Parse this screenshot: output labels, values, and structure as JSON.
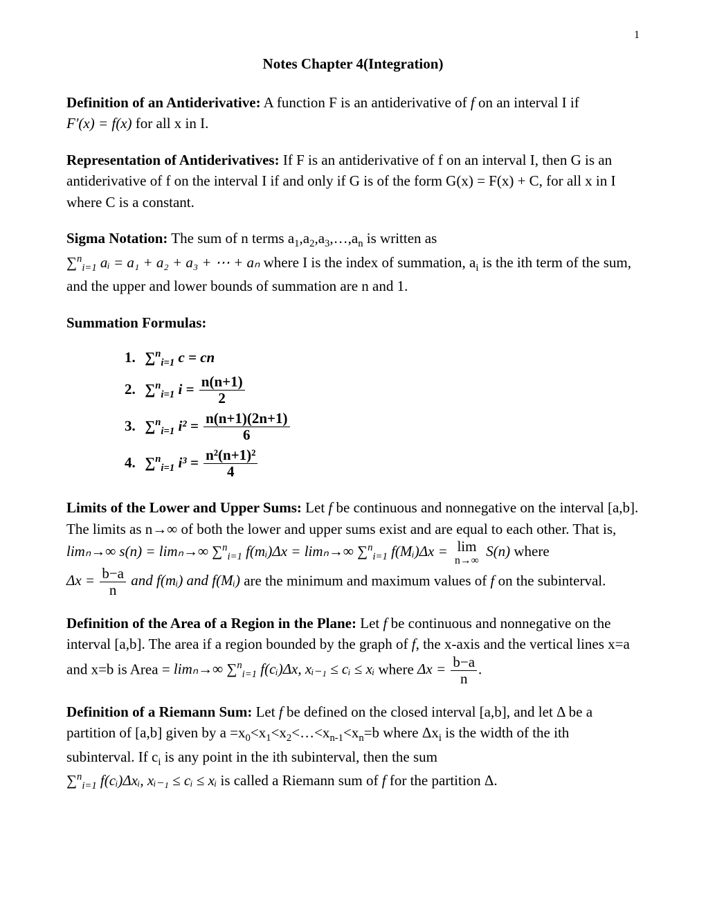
{
  "page": {
    "number": "1"
  },
  "title": "Notes Chapter 4(Integration)",
  "sections": {
    "antideriv": {
      "heading": "Definition of an Antiderivative:",
      "text1": " A function F is an antiderivative of ",
      "text2": " on an interval I if ",
      "formula": "F′(x) = f(x)",
      "text3": " for all x in I."
    },
    "rep": {
      "heading": "Representation of Antiderivatives:",
      "text": " If F is an antiderivative of f on an interval I, then G is an antiderivative of f on the interval I if and only if G is of the form G(x) = F(x) + C, for all x in I where C is a constant."
    },
    "sigma": {
      "heading": "Sigma Notation:",
      "text1": " The sum of n terms a",
      "sub1": "1",
      "text2": ",a",
      "sub2": "2",
      "text3": ",a",
      "sub3": "3",
      "text4": ",…,a",
      "subn": "n",
      "text5": " is written as",
      "formula_left": "∑",
      "formula_sup": "n",
      "formula_sub": "i=1",
      "formula_body": " aᵢ = a₁ + a₂ + a₃ + ⋯ + aₙ",
      "text6": " where I is the index of summation, a",
      "subi": "i",
      "text7": " is the ith term of the sum, and the upper and lower bounds of summation are n and 1."
    },
    "sumformulas": {
      "heading": "Summation Formulas:",
      "items": [
        {
          "n": "1.",
          "lhs": "∑",
          "sup": "n",
          "sub": "i=1",
          "body": " c = cn"
        },
        {
          "n": "2.",
          "lhs": "∑",
          "sup": "n",
          "sub": "i=1",
          "body_prefix": " i = ",
          "frac_num": "n(n+1)",
          "frac_den": "2"
        },
        {
          "n": "3.",
          "lhs": "∑",
          "sup": "n",
          "sub": "i=1",
          "body_prefix": " i² = ",
          "frac_num": "n(n+1)(2n+1)",
          "frac_den": "6"
        },
        {
          "n": "4.",
          "lhs": "∑",
          "sup": "n",
          "sub": "i=1",
          "body_prefix": " i³ = ",
          "frac_num": "n²(n+1)²",
          "frac_den": "4"
        }
      ]
    },
    "limits": {
      "heading": "Limits of the Lower and Upper Sums:",
      "text1": " Let ",
      "text2": " be continuous and nonnegative on the interval [a,b]. The limits as n→∞ of both the lower and upper sums exist and are equal to each other. That is,",
      "line2_a": "limₙ→∞ s(n) = limₙ→∞ ∑",
      "line2_sup": "n",
      "line2_sub": "i=1",
      "line2_b": " f(mᵢ)Δx = limₙ→∞ ∑",
      "line2_c": " f(Mᵢ)Δx = ",
      "line2_lim": "lim",
      "line2_limsub": "n→∞",
      "line2_d": " S(n)",
      "line2_tail": " where",
      "line3_a": "Δx = ",
      "line3_num": "b−a",
      "line3_den": "n",
      "line3_b": " and f(mᵢ) and f(Mᵢ)",
      "line3_c": " are the minimum and maximum values of ",
      "line3_d": " on the subinterval."
    },
    "area": {
      "heading": "Definition of the Area of a Region in the Plane:",
      "text1": " Let ",
      "text2": " be continuous and nonnegative on the interval [a,b]. The area if a region bounded by the graph of ",
      "text3": ", the x-axis and the vertical lines x=a and x=b is Area = ",
      "formula_a": "limₙ→∞ ∑",
      "formula_sup": "n",
      "formula_sub": "i=1",
      "formula_b": " f(cᵢ)Δx,  xᵢ₋₁ ≤ cᵢ ≤ xᵢ",
      "text4": " where ",
      "dx": "Δx = ",
      "frac_num": "b−a",
      "frac_den": "n",
      "period": "."
    },
    "riemann": {
      "heading": "Definition of a Riemann Sum:",
      "text1": " Let ",
      "text2": " be defined on the closed interval [a,b], and let Δ be a partition of [a,b] given by a =x",
      "s0": "0",
      "lt1": "<x",
      "s1": "1",
      "lt2": "<x",
      "s2": "2",
      "lt3": "<…<x",
      "sn1": "n-1",
      "lt4": "<x",
      "sn": "n",
      "text3": "=b where Δx",
      "si": "i",
      "text4": " is the width of the ith subinterval. If c",
      "text5": " is any point in the ith subinterval, then the sum",
      "formula_a": "∑",
      "formula_sup": "n",
      "formula_sub": "i=1",
      "formula_b": " f(cᵢ)Δxᵢ, xᵢ₋₁ ≤ cᵢ ≤ xᵢ",
      "text6": " is called a Riemann sum of ",
      "text7": " for the partition Δ."
    }
  },
  "f_italic": "f"
}
